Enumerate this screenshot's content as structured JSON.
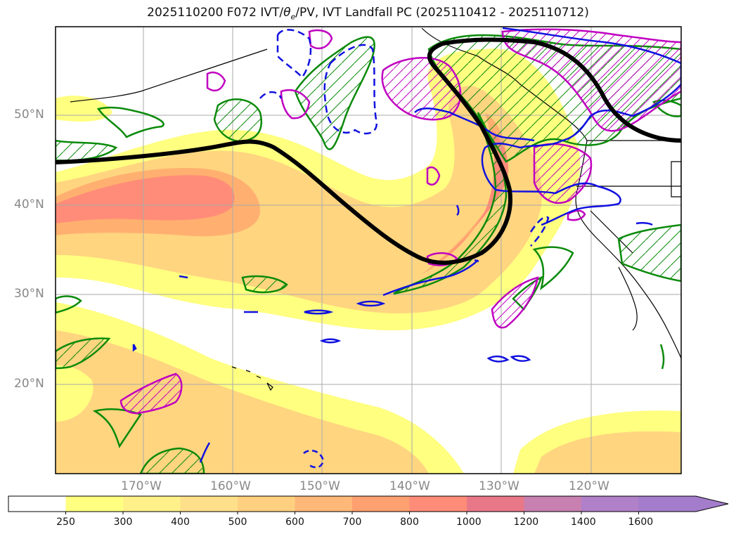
{
  "title_pre": "2025110200 F072 IVT/",
  "title_theta": "θ",
  "title_sub": "e",
  "title_post": "/PV, IVT Landfall PC (2025110412 - 2025110712)",
  "lat_labels": [
    "50°N",
    "40°N",
    "30°N",
    "20°N"
  ],
  "lon_labels": [
    "170°W",
    "160°W",
    "150°W",
    "140°W",
    "130°W",
    "120°W"
  ],
  "colorbar": {
    "levels": [
      "250",
      "300",
      "400",
      "500",
      "600",
      "700",
      "800",
      "1000",
      "1200",
      "1400",
      "1600"
    ],
    "colors": [
      "#ffffff",
      "#ffff80",
      "#fff08a",
      "#ffe08a",
      "#ffd080",
      "#ffb878",
      "#ffa070",
      "#ff8c78",
      "#e87888",
      "#c880b0",
      "#b080c8",
      "#a47ccc"
    ]
  },
  "colors": {
    "ivt_low": "#ffff80",
    "ivt_mid": "#ffd580",
    "ivt_high": "#ff8c78",
    "theta_e": "#0a8a0a",
    "pv_positive": "#c000c0",
    "pv_negative": "#1010e0",
    "landfall_pc": "#000000"
  }
}
